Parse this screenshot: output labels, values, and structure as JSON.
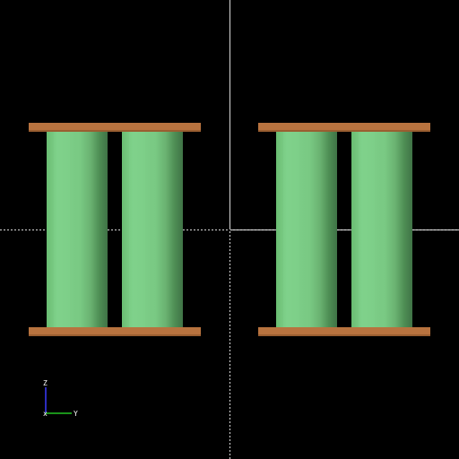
{
  "viewport": {
    "background": "#000000",
    "crosshair_color": "#ffffff"
  },
  "colors": {
    "plate": "#b8733f",
    "plate_edge": "#9a5e31",
    "cylinder_light": "#7fd08a",
    "cylinder_mid": "#6abd72",
    "cylinder_dark": "#4f8f55",
    "cylinder_shadow": "#3f7346"
  },
  "scene": {
    "assemblies": 2,
    "cylinders_per_assembly": 2,
    "plates_per_assembly": 2
  },
  "axes": {
    "z_label": "Z",
    "y_label": "Y",
    "z_color": "#3b3bff",
    "y_color": "#22c422",
    "x_color": "#ffffff",
    "origin_icon": "x-axis-origin-icon"
  }
}
